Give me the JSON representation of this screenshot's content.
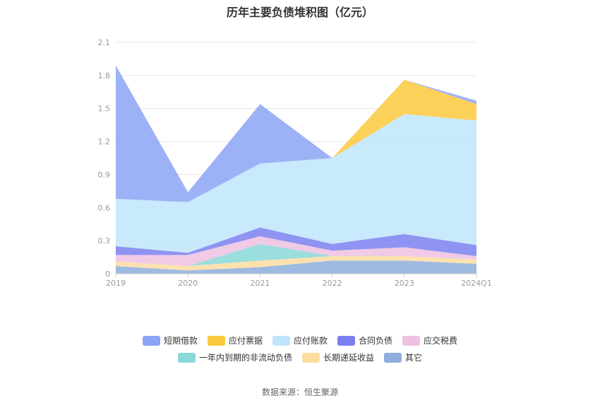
{
  "chart_data": {
    "type": "area",
    "stacked": true,
    "title": "历年主要负债堆积图（亿元）",
    "x": [
      "2019",
      "2020",
      "2021",
      "2022",
      "2023",
      "2024Q1"
    ],
    "ylim": [
      0,
      2.1
    ],
    "yticks": [
      "0",
      "0.3",
      "0.6",
      "0.9",
      "1.2",
      "1.5",
      "1.8",
      "2.1"
    ],
    "grid": true,
    "legend_position": "bottom",
    "series": [
      {
        "name": "其它",
        "color": "#8eaedc",
        "values": [
          0.07,
          0.03,
          0.06,
          0.12,
          0.12,
          0.09
        ]
      },
      {
        "name": "长期递延收益",
        "color": "#fddca0",
        "values": [
          0.04,
          0.04,
          0.06,
          0.04,
          0.04,
          0.04
        ]
      },
      {
        "name": "一年内到期的非流动负债",
        "color": "#8ad8d8",
        "values": [
          0.0,
          0.0,
          0.15,
          0.0,
          0.0,
          0.0
        ]
      },
      {
        "name": "应交税费",
        "color": "#eec1e0",
        "values": [
          0.06,
          0.1,
          0.07,
          0.05,
          0.08,
          0.03
        ]
      },
      {
        "name": "合同负债",
        "color": "#7b80f0",
        "values": [
          0.08,
          0.02,
          0.08,
          0.06,
          0.12,
          0.1
        ]
      },
      {
        "name": "应付账款",
        "color": "#bfe5fb",
        "values": [
          0.43,
          0.46,
          0.58,
          0.78,
          1.09,
          1.13
        ]
      },
      {
        "name": "应付票据",
        "color": "#fbc93d",
        "values": [
          0.0,
          0.0,
          0.0,
          0.0,
          0.31,
          0.15
        ]
      },
      {
        "name": "短期借款",
        "color": "#8ca5f5",
        "values": [
          1.21,
          0.09,
          0.54,
          0.0,
          0.0,
          0.03
        ]
      }
    ],
    "legend_order": [
      "短期借款",
      "应付票据",
      "应付账款",
      "合同负债",
      "应交税费",
      "一年内到期的非流动负债",
      "长期递延收益",
      "其它"
    ],
    "source": "数据来源：恒生聚源"
  }
}
